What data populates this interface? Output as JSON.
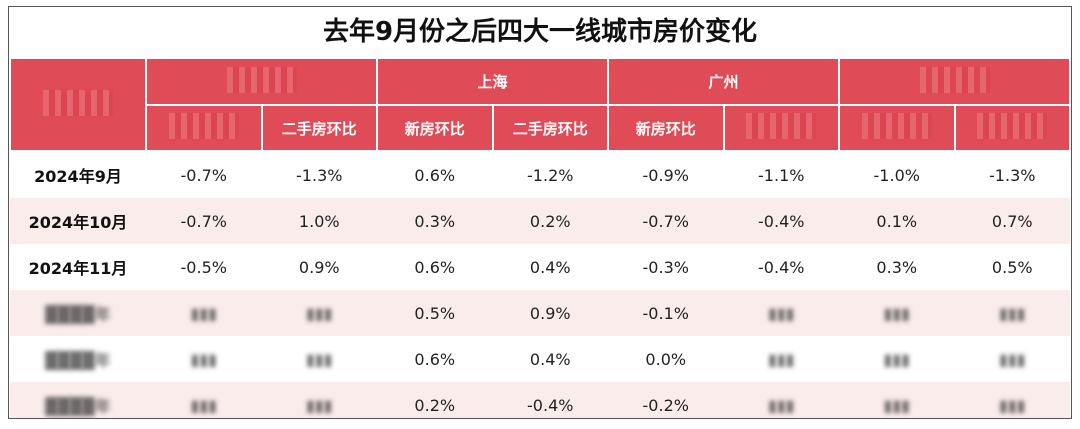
{
  "title": "去年9月份之后四大一线城市房价变化",
  "cities": [
    "",
    "上海",
    "广州",
    ""
  ],
  "sub_headers": [
    "",
    "二手房环比",
    "新房环比",
    "二手房环比",
    "新房环比",
    "",
    "",
    ""
  ],
  "rows": [
    {
      "month": "2024年9月",
      "values": [
        "-0.7%",
        "-1.3%",
        "0.6%",
        "-1.2%",
        "-0.9%",
        "-1.1%",
        "-1.0%",
        "-1.3%"
      ]
    },
    {
      "month": "2024年10月",
      "values": [
        "-0.7%",
        "1.0%",
        "0.3%",
        "0.2%",
        "-0.7%",
        "-0.4%",
        "0.1%",
        "0.7%"
      ]
    },
    {
      "month": "2024年11月",
      "values": [
        "-0.5%",
        "0.9%",
        "0.6%",
        "0.4%",
        "-0.3%",
        "-0.4%",
        "0.3%",
        "0.5%"
      ]
    },
    {
      "month": "",
      "values": [
        "",
        "",
        "0.5%",
        "0.9%",
        "-0.1%",
        "",
        "",
        ""
      ]
    },
    {
      "month": "",
      "values": [
        "",
        "",
        "0.6%",
        "0.4%",
        "0.0%",
        "",
        "",
        ""
      ]
    },
    {
      "month": "",
      "values": [
        "",
        "",
        "0.2%",
        "-0.4%",
        "-0.2%",
        "",
        "",
        ""
      ]
    }
  ],
  "colors": {
    "header_red": "#df4b56",
    "row_tint": "#fbecec"
  }
}
